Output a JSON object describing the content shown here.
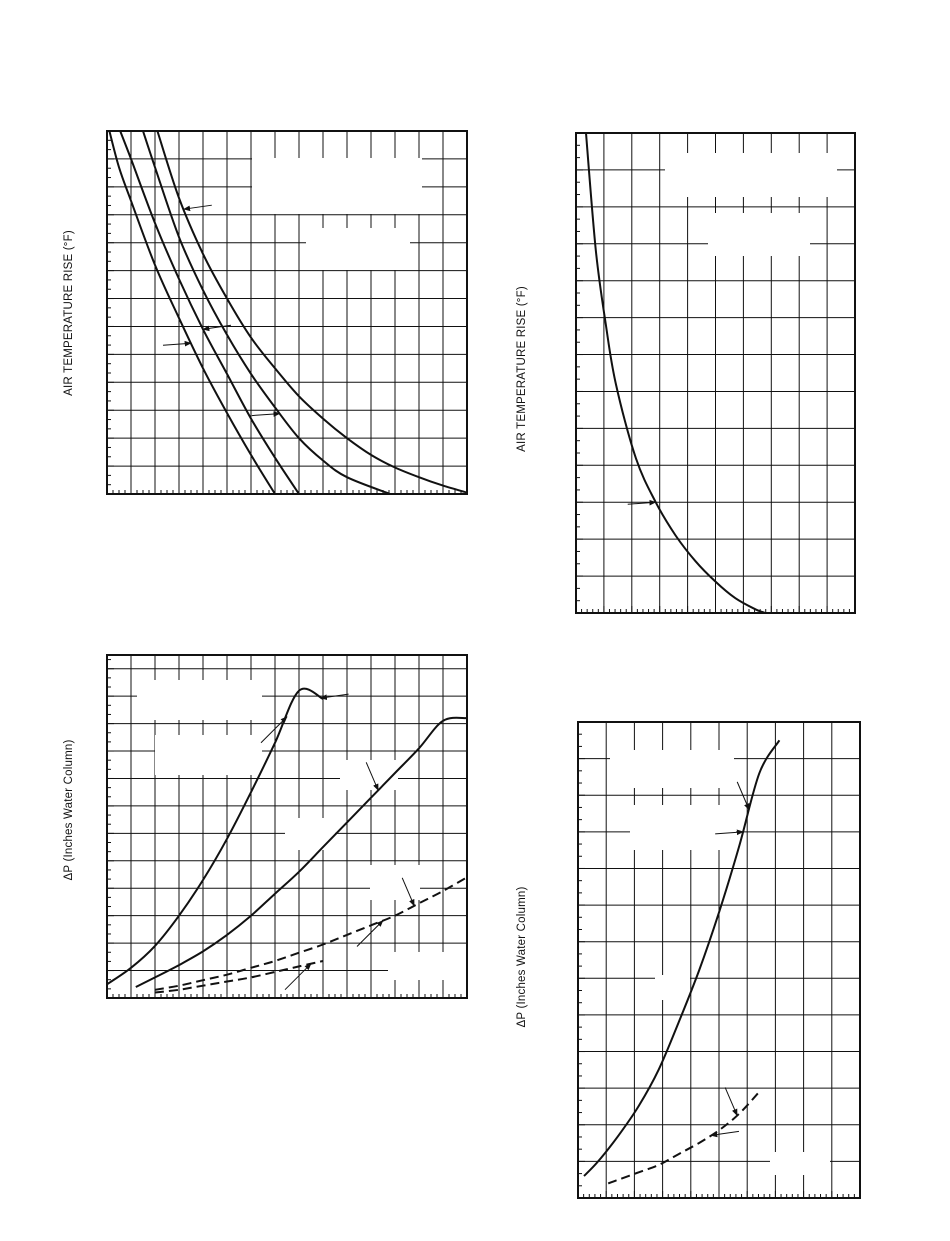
{
  "page": {
    "background": "#ffffff",
    "ink": "#111111"
  },
  "chart_data": [
    {
      "id": "top-left",
      "type": "line",
      "ylabel": "AIR TEMPERATURE RISE (°F)",
      "xlim": [
        0,
        15
      ],
      "ylim": [
        0,
        13
      ],
      "grid": true,
      "series": [
        {
          "style": "solid",
          "x": [
            0.1,
            0.5,
            1,
            2,
            3,
            4,
            5,
            6,
            7
          ],
          "y": [
            13,
            11.7,
            10.5,
            8.2,
            6.3,
            4.5,
            2.9,
            1.4,
            0
          ]
        },
        {
          "style": "solid",
          "x": [
            0.55,
            1,
            2,
            3,
            4,
            5,
            6,
            7,
            8
          ],
          "y": [
            13,
            12.0,
            9.7,
            7.7,
            5.9,
            4.3,
            2.7,
            1.3,
            0
          ]
        },
        {
          "style": "solid",
          "x": [
            1.5,
            2,
            3,
            4,
            5,
            6,
            7,
            8,
            9,
            10,
            11.8
          ],
          "y": [
            13,
            11.7,
            9.2,
            7.3,
            5.7,
            4.3,
            3.1,
            2.0,
            1.2,
            0.6,
            0
          ]
        },
        {
          "style": "solid",
          "x": [
            2.1,
            3,
            4,
            5,
            6,
            7,
            8,
            9,
            10,
            11,
            12,
            13,
            14,
            15
          ],
          "y": [
            13,
            10.6,
            8.6,
            7.0,
            5.6,
            4.5,
            3.5,
            2.7,
            2.0,
            1.4,
            0.95,
            0.6,
            0.3,
            0.05
          ]
        }
      ],
      "annotations": [
        {
          "series": 3,
          "at_x": 3.2,
          "from": "right"
        },
        {
          "series": 1,
          "at_x": 4.0,
          "from": "right"
        },
        {
          "series": 0,
          "at_x": 3.5,
          "from": "left"
        },
        {
          "series": 2,
          "at_x": 7.2,
          "from": "left"
        }
      ]
    },
    {
      "id": "top-right",
      "type": "line",
      "ylabel": "AIR TEMPERATURE RISE (°F)",
      "xlim": [
        0,
        14
      ],
      "ylim": [
        0,
        13
      ],
      "grid": true,
      "series": [
        {
          "style": "solid",
          "x": [
            0.5,
            1,
            1.5,
            2,
            3,
            4,
            5,
            6,
            7,
            8,
            9,
            9.5
          ],
          "y": [
            13,
            9.8,
            7.8,
            6.2,
            4.2,
            3.0,
            2.1,
            1.4,
            0.85,
            0.4,
            0.1,
            0
          ]
        }
      ],
      "annotations": [
        {
          "series": 0,
          "at_x": 4.0,
          "from": "left"
        }
      ]
    },
    {
      "id": "bottom-left",
      "type": "line",
      "ylabel": "ΔP (Inches Water Column)",
      "xlim": [
        0,
        15
      ],
      "ylim": [
        0,
        12.5
      ],
      "grid": true,
      "series": [
        {
          "style": "solid",
          "x": [
            0,
            1,
            2,
            3,
            4,
            5,
            6,
            7,
            8,
            9
          ],
          "y": [
            0.5,
            1.1,
            1.9,
            3.0,
            4.3,
            5.8,
            7.5,
            9.3,
            11.2,
            10.9
          ]
        },
        {
          "style": "solid",
          "x": [
            1.2,
            2,
            3,
            4,
            5,
            6,
            7,
            8,
            9,
            10,
            11,
            12,
            13,
            14,
            15
          ],
          "y": [
            0.4,
            0.75,
            1.2,
            1.7,
            2.3,
            3.0,
            3.8,
            4.6,
            5.5,
            6.4,
            7.3,
            8.2,
            9.1,
            10.1,
            10.2
          ]
        },
        {
          "style": "dashed",
          "x": [
            2,
            3,
            4,
            5,
            6,
            7,
            8,
            9,
            10,
            11,
            12,
            13,
            14,
            15
          ],
          "y": [
            0.3,
            0.45,
            0.65,
            0.85,
            1.1,
            1.35,
            1.65,
            1.95,
            2.3,
            2.65,
            3.0,
            3.45,
            3.9,
            4.4
          ]
        },
        {
          "style": "dashed",
          "x": [
            2,
            3,
            4,
            5,
            6,
            7,
            8,
            9
          ],
          "y": [
            0.2,
            0.3,
            0.45,
            0.6,
            0.75,
            0.95,
            1.15,
            1.35
          ]
        }
      ],
      "annotations": [
        {
          "series": 0,
          "at_x": 8.9,
          "from": "right"
        },
        {
          "series": 0,
          "at_x": 7.5,
          "from": "below"
        },
        {
          "series": 1,
          "at_x": 11.3,
          "from": "above"
        },
        {
          "series": 2,
          "at_x": 12.8,
          "from": "above"
        },
        {
          "series": 2,
          "at_x": 11.5,
          "from": "below"
        },
        {
          "series": 3,
          "at_x": 8.5,
          "from": "below"
        }
      ]
    },
    {
      "id": "bottom-right",
      "type": "line",
      "ylabel": "ΔP (Inches Water Column)",
      "xlim": [
        0,
        14
      ],
      "ylim": [
        0,
        13
      ],
      "grid": true,
      "series": [
        {
          "style": "solid",
          "x": [
            0.3,
            1,
            2,
            3,
            4,
            5,
            6,
            7,
            8,
            9,
            10
          ],
          "y": [
            0.6,
            1.0,
            1.7,
            2.5,
            3.5,
            4.8,
            6.2,
            7.8,
            9.6,
            11.6,
            12.5
          ]
        },
        {
          "style": "dashed",
          "x": [
            1.5,
            2,
            3,
            4,
            5,
            6,
            7,
            8,
            9
          ],
          "y": [
            0.4,
            0.5,
            0.7,
            0.9,
            1.2,
            1.5,
            1.85,
            2.3,
            2.9
          ]
        }
      ],
      "annotations": [
        {
          "series": 0,
          "at_x": 8.5,
          "from": "above"
        },
        {
          "series": 0,
          "at_x": 8.2,
          "from": "left"
        },
        {
          "series": 1,
          "at_x": 7.9,
          "from": "above"
        },
        {
          "series": 1,
          "at_x": 6.6,
          "from": "right"
        }
      ]
    }
  ]
}
